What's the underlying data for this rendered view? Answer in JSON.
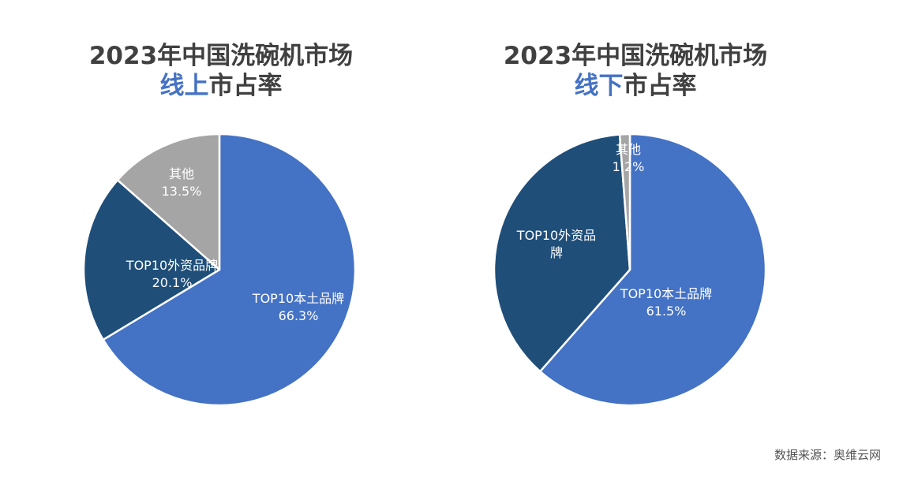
{
  "chart_data": [
    {
      "type": "pie",
      "title_line1": "2023年中国洗碗机市场",
      "title_highlight": "线上",
      "title_rest": "市占率",
      "slices": [
        {
          "label": "TOP10本土品牌",
          "value": 66.3,
          "value_label": "66.3%",
          "color": "#4472c4"
        },
        {
          "label": "TOP10外资品牌",
          "value": 20.1,
          "value_label": "20.1%",
          "color": "#1f4e79"
        },
        {
          "label": "其他",
          "value": 13.5,
          "value_label": "13.5%",
          "color": "#a5a5a5"
        }
      ]
    },
    {
      "type": "pie",
      "title_line1": "2023年中国洗碗机市场",
      "title_highlight": "线下",
      "title_rest": "市占率",
      "slices": [
        {
          "label": "TOP10本土品牌",
          "value": 61.5,
          "value_label": "61.5%",
          "color": "#4472c4"
        },
        {
          "label": "TOP10外资品牌",
          "value": 37.3,
          "value_label": "",
          "color": "#1f4e79"
        },
        {
          "label": "其他",
          "value": 1.2,
          "value_label": "1.2%",
          "color": "#a5a5a5"
        }
      ]
    }
  ],
  "source": "数据来源：奥维云网"
}
